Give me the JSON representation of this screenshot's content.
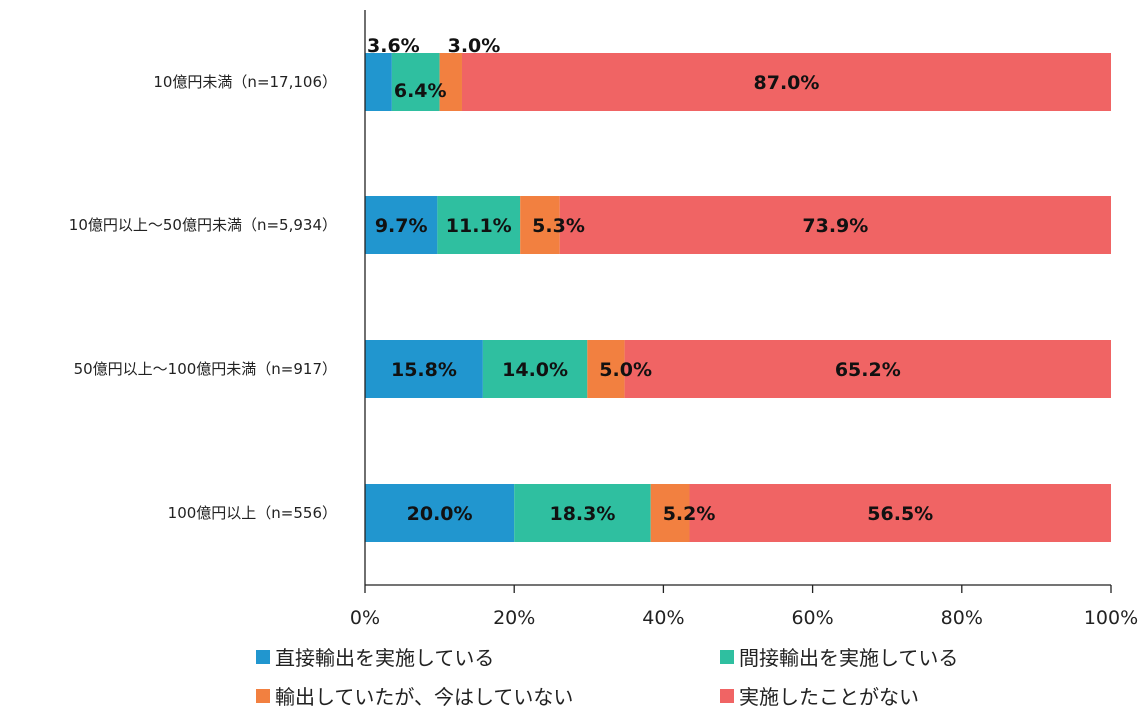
{
  "chart_data": {
    "type": "bar",
    "orientation": "horizontal",
    "stacked": true,
    "categories": [
      "10億円未満（n=17,106）",
      "10億円以上～50億円未満（n=5,934）",
      "50億円以上～100億円未満（n=917）",
      "100億円以上（n=556）"
    ],
    "series": [
      {
        "name": "直接輸出を実施している",
        "color": "#2196cf",
        "values": [
          3.6,
          9.7,
          15.8,
          20.0
        ]
      },
      {
        "name": "間接輸出を実施している",
        "color": "#2fbfa0",
        "values": [
          6.4,
          11.1,
          14.0,
          18.3
        ]
      },
      {
        "name": "輸出していたが、今はしていない",
        "color": "#f28040",
        "values": [
          3.0,
          5.3,
          5.0,
          5.2
        ]
      },
      {
        "name": "実施したことがない",
        "color": "#f06464",
        "values": [
          87.0,
          73.9,
          65.2,
          56.5
        ]
      }
    ],
    "data_labels": [
      [
        "3.6%",
        "6.4%",
        "3.0%",
        "87.0%"
      ],
      [
        "9.7%",
        "11.1%",
        "5.3%",
        "73.9%"
      ],
      [
        "15.8%",
        "14.0%",
        "5.0%",
        "65.2%"
      ],
      [
        "20.0%",
        "18.3%",
        "5.2%",
        "56.5%"
      ]
    ],
    "x_ticks": [
      0,
      20,
      40,
      60,
      80,
      100
    ],
    "x_tick_labels": [
      "0%",
      "20%",
      "40%",
      "60%",
      "80%",
      "100%"
    ],
    "xlim": [
      0,
      100
    ],
    "grid": false,
    "legend_position": "bottom"
  }
}
